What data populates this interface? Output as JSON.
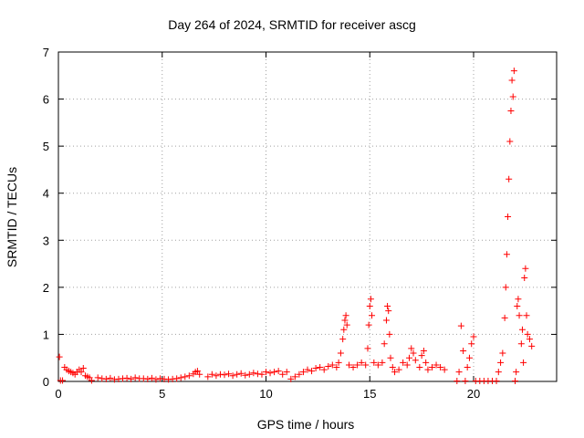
{
  "chart_data": {
    "type": "scatter",
    "title": "Day 264 of 2024, SRMTID for receiver ascg",
    "xlabel": "GPS time / hours",
    "ylabel": "SRMTID / TECUs",
    "xlim": [
      0,
      24
    ],
    "ylim": [
      0,
      7
    ],
    "xticks": [
      0,
      5,
      10,
      15,
      20
    ],
    "yticks": [
      0,
      1,
      2,
      3,
      4,
      5,
      6,
      7
    ],
    "grid": true,
    "marker": "+",
    "color": "#ff0000",
    "series": [
      {
        "name": "ascg",
        "x": [
          0.05,
          0.1,
          0.2,
          0.3,
          0.4,
          0.5,
          0.6,
          0.7,
          0.8,
          0.9,
          1.0,
          1.1,
          1.2,
          1.3,
          1.4,
          1.5,
          1.6,
          1.9,
          2.1,
          2.3,
          2.5,
          2.7,
          2.9,
          3.1,
          3.3,
          3.5,
          3.7,
          3.9,
          4.1,
          4.3,
          4.5,
          4.7,
          4.9,
          5.1,
          5.3,
          5.5,
          5.7,
          5.9,
          6.1,
          6.3,
          6.5,
          6.6,
          6.7,
          6.8,
          7.2,
          7.4,
          7.6,
          7.8,
          8.0,
          8.2,
          8.4,
          8.6,
          8.8,
          9.0,
          9.2,
          9.4,
          9.6,
          9.8,
          10.0,
          10.2,
          10.4,
          10.6,
          10.8,
          11.0,
          11.2,
          11.4,
          11.6,
          11.8,
          12.0,
          12.2,
          12.4,
          12.6,
          12.8,
          13.0,
          13.2,
          13.4,
          13.5,
          13.6,
          13.7,
          13.75,
          13.8,
          13.85,
          13.9,
          14.0,
          14.2,
          14.4,
          14.6,
          14.8,
          14.9,
          14.95,
          15.0,
          15.05,
          15.1,
          15.2,
          15.4,
          15.6,
          15.7,
          15.8,
          15.85,
          15.9,
          15.95,
          16.0,
          16.1,
          16.2,
          16.4,
          16.6,
          16.8,
          16.9,
          17.0,
          17.1,
          17.2,
          17.4,
          17.5,
          17.6,
          17.7,
          17.8,
          18.0,
          18.2,
          18.4,
          18.6,
          19.2,
          19.3,
          19.4,
          19.5,
          19.6,
          19.7,
          19.8,
          19.9,
          20.0,
          20.1,
          20.3,
          20.5,
          20.7,
          20.9,
          21.1,
          21.2,
          21.3,
          21.4,
          21.5,
          21.55,
          21.6,
          21.65,
          21.7,
          21.75,
          21.8,
          21.85,
          21.9,
          21.95,
          22.0,
          22.05,
          22.1,
          22.15,
          22.2,
          22.3,
          22.35,
          22.4,
          22.45,
          22.5,
          22.55,
          22.6,
          22.7,
          22.8
        ],
        "y": [
          0.52,
          0.02,
          0.02,
          0.3,
          0.25,
          0.22,
          0.2,
          0.18,
          0.15,
          0.2,
          0.25,
          0.2,
          0.28,
          0.12,
          0.1,
          0.08,
          0.02,
          0.08,
          0.06,
          0.05,
          0.07,
          0.04,
          0.05,
          0.06,
          0.07,
          0.05,
          0.08,
          0.06,
          0.06,
          0.05,
          0.07,
          0.04,
          0.06,
          0.05,
          0.04,
          0.05,
          0.06,
          0.08,
          0.1,
          0.12,
          0.16,
          0.2,
          0.22,
          0.15,
          0.1,
          0.15,
          0.12,
          0.15,
          0.14,
          0.16,
          0.12,
          0.15,
          0.17,
          0.13,
          0.15,
          0.18,
          0.16,
          0.15,
          0.2,
          0.18,
          0.2,
          0.22,
          0.15,
          0.2,
          0.05,
          0.1,
          0.15,
          0.2,
          0.25,
          0.22,
          0.28,
          0.3,
          0.25,
          0.32,
          0.35,
          0.3,
          0.4,
          0.6,
          0.9,
          1.1,
          1.3,
          1.4,
          1.2,
          0.35,
          0.3,
          0.35,
          0.4,
          0.35,
          0.7,
          1.2,
          1.6,
          1.75,
          1.4,
          0.4,
          0.35,
          0.4,
          0.8,
          1.3,
          1.6,
          1.5,
          1.0,
          0.5,
          0.3,
          0.2,
          0.25,
          0.4,
          0.35,
          0.5,
          0.7,
          0.6,
          0.45,
          0.3,
          0.55,
          0.65,
          0.4,
          0.25,
          0.3,
          0.35,
          0.3,
          0.25,
          0.01,
          0.2,
          1.18,
          0.65,
          0.01,
          0.3,
          0.5,
          0.8,
          0.95,
          0.01,
          0.01,
          0.01,
          0.01,
          0.01,
          0.01,
          0.2,
          0.4,
          0.6,
          1.35,
          2.0,
          2.7,
          3.5,
          4.3,
          5.1,
          5.75,
          6.4,
          6.05,
          6.6,
          0.01,
          0.2,
          1.6,
          1.75,
          1.4,
          0.8,
          1.1,
          0.4,
          2.2,
          2.4,
          1.4,
          1.0,
          0.9,
          0.75
        ]
      }
    ]
  }
}
